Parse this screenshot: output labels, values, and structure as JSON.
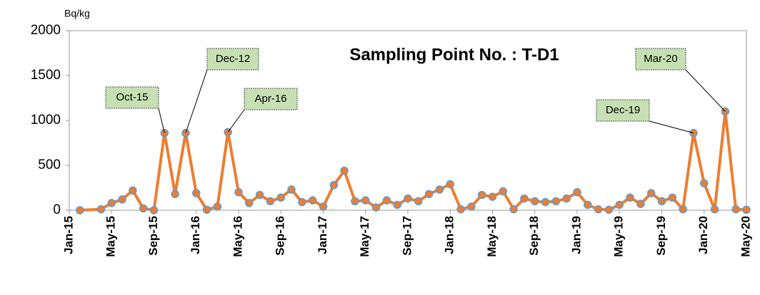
{
  "chart_data": {
    "type": "line",
    "title": "Sampling Point No. : T-D1",
    "y_label": "Bq/kg",
    "x": [
      "Feb-15",
      "Apr-15",
      "May-15",
      "Jun-15",
      "Jul-15",
      "Aug-15",
      "Sep-15",
      "Oct-15",
      "Nov-15",
      "Dec-15",
      "Jan-16",
      "Feb-16",
      "Mar-16",
      "Apr-16",
      "May-16",
      "Jun-16",
      "Jul-16",
      "Aug-16",
      "Sep-16",
      "Oct-16",
      "Nov-16",
      "Dec-16",
      "Jan-17",
      "Feb-17",
      "Mar-17",
      "Apr-17",
      "May-17",
      "Jun-17",
      "Jul-17",
      "Aug-17",
      "Sep-17",
      "Oct-17",
      "Nov-17",
      "Dec-17",
      "Jan-18",
      "Feb-18",
      "Mar-18",
      "Apr-18",
      "May-18",
      "Jun-18",
      "Jul-18",
      "Aug-18",
      "Sep-18",
      "Oct-18",
      "Nov-18",
      "Dec-18",
      "Jan-19",
      "Feb-19",
      "Mar-19",
      "Apr-19",
      "May-19",
      "Jun-19",
      "Jul-19",
      "Aug-19",
      "Sep-19",
      "Oct-19",
      "Nov-19",
      "Dec-19",
      "Jan-20",
      "Feb-20",
      "Mar-20",
      "Apr-20",
      "May-20"
    ],
    "series": [
      {
        "name": "T-D1",
        "color": "#ED7D31",
        "marker_edge": "#5B9BD5",
        "values": [
          0,
          10,
          80,
          120,
          220,
          20,
          0,
          860,
          180,
          860,
          190,
          5,
          40,
          870,
          200,
          80,
          170,
          100,
          140,
          230,
          90,
          110,
          40,
          280,
          440,
          100,
          110,
          30,
          110,
          60,
          130,
          100,
          180,
          230,
          290,
          10,
          40,
          170,
          150,
          210,
          10,
          130,
          100,
          90,
          100,
          130,
          200,
          60,
          10,
          5,
          60,
          140,
          70,
          190,
          100,
          140,
          10,
          860,
          300,
          10,
          1100,
          10,
          5
        ]
      }
    ],
    "xlim": [
      "Jan-15",
      "May-20"
    ],
    "xticks": [
      "Jan-15",
      "May-15",
      "Sep-15",
      "Jan-16",
      "May-16",
      "Sep-16",
      "Jan-17",
      "May-17",
      "Sep-17",
      "Jan-18",
      "May-18",
      "Sep-18",
      "Jan-19",
      "May-19",
      "Sep-19",
      "Jan-20",
      "May-20"
    ],
    "ylim": [
      0,
      2000
    ],
    "yticks": [
      0,
      500,
      1000,
      1500,
      2000
    ],
    "grid": false,
    "annotations": [
      {
        "text": "Oct-15"
      },
      {
        "text": "Dec-12"
      },
      {
        "text": "Apr-16"
      },
      {
        "text": "Dec-19"
      },
      {
        "text": "Mar-20"
      }
    ]
  }
}
